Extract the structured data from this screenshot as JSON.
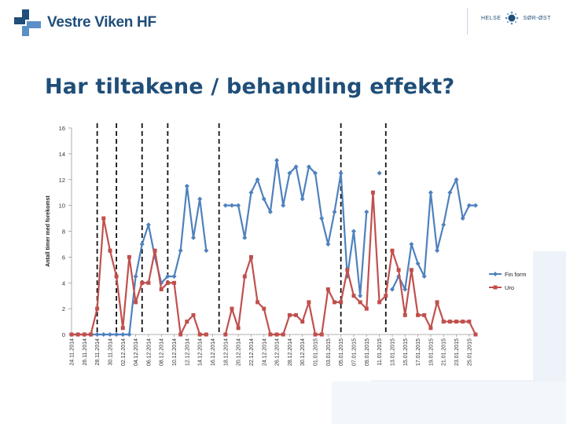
{
  "header": {
    "org_name": "Vestre Viken HF",
    "partner_left": "HELSE",
    "partner_right": "SØR-ØST"
  },
  "slide": {
    "title": "Har tiltakene / behandling effekt?"
  },
  "colors": {
    "brand": "#1f4e79",
    "logo_blue": "#5b8fc7",
    "fin_form": "#4f81bd",
    "uro": "#c0504d"
  },
  "chart_data": {
    "type": "line",
    "title": "",
    "xlabel": "",
    "ylabel": "Antall timer med forekomst",
    "ylim": [
      0,
      16
    ],
    "yticks": [
      0,
      2,
      4,
      6,
      8,
      10,
      12,
      14,
      16
    ],
    "legend_position": "right",
    "x": [
      "24.11.2014",
      "25.11.2014",
      "26.11.2014",
      "27.11.2014",
      "28.11.2014",
      "29.11.2014",
      "30.11.2014",
      "01.12.2014",
      "02.12.2014",
      "03.12.2014",
      "04.12.2014",
      "05.12.2014",
      "06.12.2014",
      "07.12.2014",
      "08.12.2014",
      "09.12.2014",
      "10.12.2014",
      "11.12.2014",
      "12.12.2014",
      "13.12.2014",
      "14.12.2014",
      "15.12.2014",
      "16.12.2014",
      "17.12.2014",
      "18.12.2014",
      "19.12.2014",
      "20.12.2014",
      "21.12.2014",
      "22.12.2014",
      "23.12.2014",
      "24.12.2014",
      "25.12.2014",
      "26.12.2014",
      "27.12.2014",
      "28.12.2014",
      "29.12.2014",
      "30.12.2014",
      "31.12.2014",
      "01.01.2015",
      "02.01.2015",
      "03.01.2015",
      "04.01.2015",
      "05.01.2015",
      "06.01.2015",
      "07.01.2015",
      "08.01.2015",
      "09.01.2015",
      "10.01.2015",
      "11.01.2015",
      "12.01.2015",
      "13.01.2015",
      "14.01.2015",
      "15.01.2015",
      "16.01.2015",
      "17.01.2015",
      "18.01.2015",
      "19.01.2015",
      "20.01.2015",
      "21.01.2015",
      "22.01.2015",
      "23.01.2015",
      "24.01.2015",
      "25.01.2015",
      "26.01.2015"
    ],
    "xtick_labels": [
      "24.11.2014",
      "26.11.2014",
      "28.11.2014",
      "30.11.2014",
      "02.12.2014",
      "04.12.2014",
      "06.12.2014",
      "08.12.2014",
      "10.12.2014",
      "12.12.2014",
      "14.12.2014",
      "16.12.2014",
      "18.12.2014",
      "20.12.2014",
      "22.12.2014",
      "24.12.2014",
      "26.12.2014",
      "28.12.2014",
      "30.12.2014",
      "01.01.2015",
      "03.01.2015",
      "05.01.2015",
      "07.01.2015",
      "09.01.2015",
      "11.01.2015",
      "13.01.2015",
      "15.01.2015",
      "17.01.2015",
      "19.01.2015",
      "21.01.2015",
      "23.01.2015",
      "25.01.2015"
    ],
    "series": [
      {
        "name": "Fin form",
        "color": "#4f81bd",
        "values": [
          0,
          0,
          0,
          0,
          0,
          0,
          0,
          0,
          0,
          0,
          4.5,
          7,
          8.5,
          6,
          4,
          4.5,
          4.5,
          6.5,
          11.5,
          7.5,
          10.5,
          6.5,
          null,
          null,
          10,
          10,
          10,
          7.5,
          11,
          12,
          10.5,
          9.5,
          13.5,
          10,
          12.5,
          13,
          10.5,
          13,
          12.5,
          9,
          7,
          9.5,
          12.5,
          4.5,
          8,
          3,
          9.5,
          null,
          12.5,
          null,
          3.5,
          4.5,
          3.5,
          7,
          5.5,
          4.5,
          11,
          6.5,
          8.5,
          11,
          12,
          9,
          10,
          10
        ]
      },
      {
        "name": "Uro",
        "color": "#c0504d",
        "values": [
          0,
          0,
          0,
          0,
          2,
          9,
          6.5,
          4.5,
          0.5,
          6,
          2.5,
          4,
          4,
          6.5,
          3.5,
          4,
          4,
          0,
          1,
          1.5,
          0,
          0,
          null,
          null,
          0,
          2,
          0.5,
          4.5,
          6,
          2.5,
          2,
          0,
          0,
          0,
          1.5,
          1.5,
          1,
          2.5,
          0,
          0,
          3.5,
          2.5,
          2.5,
          5,
          3,
          2.5,
          2,
          11,
          2.5,
          3,
          6.5,
          5,
          1.5,
          5,
          1.5,
          1.5,
          0.5,
          2.5,
          1,
          1,
          1,
          1,
          1,
          0
        ]
      }
    ],
    "intervention_markers": [
      "28.11.2014",
      "01.12.2014",
      "05.12.2014",
      "09.12.2014",
      "17.12.2014",
      "05.01.2015",
      "12.01.2015"
    ]
  }
}
